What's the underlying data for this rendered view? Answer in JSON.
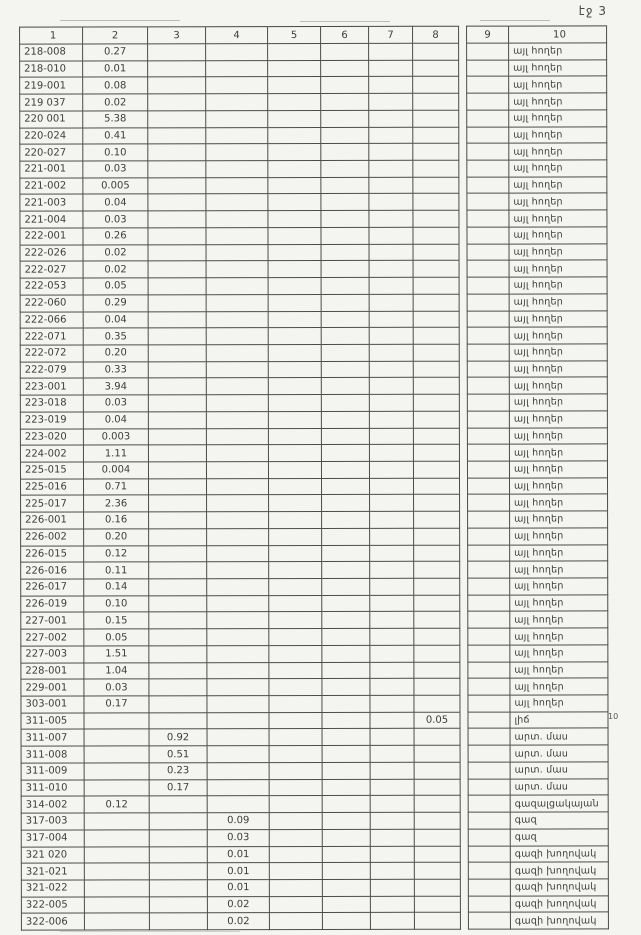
{
  "page": {
    "label": "էջ 3",
    "margin_note": "10"
  },
  "table": {
    "headers": [
      "1",
      "2",
      "3",
      "4",
      "5",
      "6",
      "7",
      "8",
      "9",
      "10"
    ],
    "rows": [
      [
        "218-008",
        "0.27",
        "",
        "",
        "",
        "",
        "",
        "",
        "",
        "այլ հողեր"
      ],
      [
        "218-010",
        "0.01",
        "",
        "",
        "",
        "",
        "",
        "",
        "",
        "այլ հողեր"
      ],
      [
        "219-001",
        "0.08",
        "",
        "",
        "",
        "",
        "",
        "",
        "",
        "այլ հողեր"
      ],
      [
        "219 037",
        "0.02",
        "",
        "",
        "",
        "",
        "",
        "",
        "",
        "այլ հողեր"
      ],
      [
        "220 001",
        "5.38",
        "",
        "",
        "",
        "",
        "",
        "",
        "",
        "այլ հողեր"
      ],
      [
        "220-024",
        "0.41",
        "",
        "",
        "",
        "",
        "",
        "",
        "",
        "այլ հողեր"
      ],
      [
        "220-027",
        "0.10",
        "",
        "",
        "",
        "",
        "",
        "",
        "",
        "այլ հողեր"
      ],
      [
        "221-001",
        "0.03",
        "",
        "",
        "",
        "",
        "",
        "",
        "",
        "այլ հողեր"
      ],
      [
        "221-002",
        "0.005",
        "",
        "",
        "",
        "",
        "",
        "",
        "",
        "այլ հողեր"
      ],
      [
        "221-003",
        "0.04",
        "",
        "",
        "",
        "",
        "",
        "",
        "",
        "այլ հողեր"
      ],
      [
        "221-004",
        "0.03",
        "",
        "",
        "",
        "",
        "",
        "",
        "",
        "այլ հողեր"
      ],
      [
        "222-001",
        "0.26",
        "",
        "",
        "",
        "",
        "",
        "",
        "",
        "այլ հողեր"
      ],
      [
        "222-026",
        "0.02",
        "",
        "",
        "",
        "",
        "",
        "",
        "",
        "այլ հողեր"
      ],
      [
        "222-027",
        "0.02",
        "",
        "",
        "",
        "",
        "",
        "",
        "",
        "այլ հողեր"
      ],
      [
        "222-053",
        "0.05",
        "",
        "",
        "",
        "",
        "",
        "",
        "",
        "այլ հողեր"
      ],
      [
        "222-060",
        "0.29",
        "",
        "",
        "",
        "",
        "",
        "",
        "",
        "այլ հողեր"
      ],
      [
        "222-066",
        "0.04",
        "",
        "",
        "",
        "",
        "",
        "",
        "",
        "այլ հողեր"
      ],
      [
        "222-071",
        "0.35",
        "",
        "",
        "",
        "",
        "",
        "",
        "",
        "այլ հողեր"
      ],
      [
        "222-072",
        "0.20",
        "",
        "",
        "",
        "",
        "",
        "",
        "",
        "այլ հողեր"
      ],
      [
        "222-079",
        "0.33",
        "",
        "",
        "",
        "",
        "",
        "",
        "",
        "այլ հողեր"
      ],
      [
        "223-001",
        "3.94",
        "",
        "",
        "",
        "",
        "",
        "",
        "",
        "այլ հողեր"
      ],
      [
        "223-018",
        "0.03",
        "",
        "",
        "",
        "",
        "",
        "",
        "",
        "այլ հողեր"
      ],
      [
        "223-019",
        "0.04",
        "",
        "",
        "",
        "",
        "",
        "",
        "",
        "այլ հողեր"
      ],
      [
        "223-020",
        "0.003",
        "",
        "",
        "",
        "",
        "",
        "",
        "",
        "այլ հողեր"
      ],
      [
        "224-002",
        "1.11",
        "",
        "",
        "",
        "",
        "",
        "",
        "",
        "այլ հողեր"
      ],
      [
        "225-015",
        "0.004",
        "",
        "",
        "",
        "",
        "",
        "",
        "",
        "այլ հողեր"
      ],
      [
        "225-016",
        "0.71",
        "",
        "",
        "",
        "",
        "",
        "",
        "",
        "այլ հողեր"
      ],
      [
        "225-017",
        "2.36",
        "",
        "",
        "",
        "",
        "",
        "",
        "",
        "այլ հողեր"
      ],
      [
        "226-001",
        "0.16",
        "",
        "",
        "",
        "",
        "",
        "",
        "",
        "այլ հողեր"
      ],
      [
        "226-002",
        "0.20",
        "",
        "",
        "",
        "",
        "",
        "",
        "",
        "այլ հողեր"
      ],
      [
        "226-015",
        "0.12",
        "",
        "",
        "",
        "",
        "",
        "",
        "",
        "այլ հողեր"
      ],
      [
        "226-016",
        "0.11",
        "",
        "",
        "",
        "",
        "",
        "",
        "",
        "այլ հողեր"
      ],
      [
        "226-017",
        "0.14",
        "",
        "",
        "",
        "",
        "",
        "",
        "",
        "այլ հողեր"
      ],
      [
        "226-019",
        "0.10",
        "",
        "",
        "",
        "",
        "",
        "",
        "",
        "այլ հողեր"
      ],
      [
        "227-001",
        "0.15",
        "",
        "",
        "",
        "",
        "",
        "",
        "",
        "այլ հողեր"
      ],
      [
        "227-002",
        "0.05",
        "",
        "",
        "",
        "",
        "",
        "",
        "",
        "այլ հողեր"
      ],
      [
        "227-003",
        "1.51",
        "",
        "",
        "",
        "",
        "",
        "",
        "",
        "այլ հողեր"
      ],
      [
        "228-001",
        "1.04",
        "",
        "",
        "",
        "",
        "",
        "",
        "",
        "այլ հողեր"
      ],
      [
        "229-001",
        "0.03",
        "",
        "",
        "",
        "",
        "",
        "",
        "",
        "այլ հողեր"
      ],
      [
        "303-001",
        "0.17",
        "",
        "",
        "",
        "",
        "",
        "",
        "",
        "այլ հողեր"
      ],
      [
        "311-005",
        "",
        "",
        "",
        "",
        "",
        "",
        "0.05",
        "",
        "լիճ"
      ],
      [
        "311-007",
        "",
        "0.92",
        "",
        "",
        "",
        "",
        "",
        "",
        "արտ. մաս"
      ],
      [
        "311-008",
        "",
        "0.51",
        "",
        "",
        "",
        "",
        "",
        "",
        "արտ. մաս"
      ],
      [
        "311-009",
        "",
        "0.23",
        "",
        "",
        "",
        "",
        "",
        "",
        "արտ. մաս"
      ],
      [
        "311-010",
        "",
        "0.17",
        "",
        "",
        "",
        "",
        "",
        "",
        "արտ. մաս"
      ],
      [
        "314-002",
        "0.12",
        "",
        "",
        "",
        "",
        "",
        "",
        "",
        "գազալցակայան"
      ],
      [
        "317-003",
        "",
        "",
        "0.09",
        "",
        "",
        "",
        "",
        "",
        "գազ"
      ],
      [
        "317-004",
        "",
        "",
        "0.03",
        "",
        "",
        "",
        "",
        "",
        "գազ"
      ],
      [
        "321 020",
        "",
        "",
        "0.01",
        "",
        "",
        "",
        "",
        "",
        "գազի խողովակ"
      ],
      [
        "321-021",
        "",
        "",
        "0.01",
        "",
        "",
        "",
        "",
        "",
        "գազի խողովակ"
      ],
      [
        "321-022",
        "",
        "",
        "0.01",
        "",
        "",
        "",
        "",
        "",
        "գազի խողովակ"
      ],
      [
        "322-005",
        "",
        "",
        "0.02",
        "",
        "",
        "",
        "",
        "",
        "գազի խողովակ"
      ],
      [
        "322-006",
        "",
        "",
        "0.02",
        "",
        "",
        "",
        "",
        "",
        "գազի խողովակ"
      ]
    ]
  }
}
